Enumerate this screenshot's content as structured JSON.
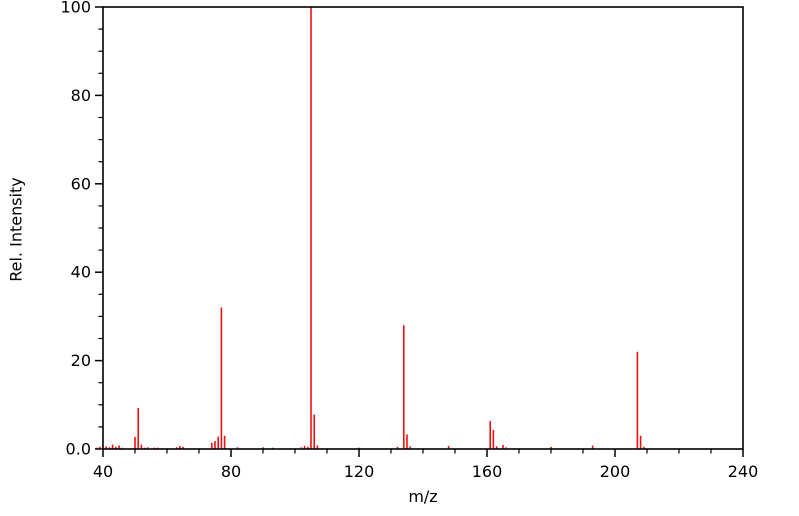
{
  "chart_data": {
    "type": "bar",
    "chart_kind": "mass-spectrum-stick-plot",
    "title": "",
    "xlabel": "m/z",
    "ylabel": "Rel. Intensity",
    "xlim": [
      40,
      240
    ],
    "ylim": [
      0,
      100
    ],
    "x_major_ticks": [
      40,
      80,
      120,
      160,
      200,
      240
    ],
    "x_tick_labels": [
      "40",
      "80",
      "120",
      "160",
      "200",
      "240"
    ],
    "x_minor_tick_step": 10,
    "y_major_ticks": [
      0,
      20,
      40,
      60,
      80,
      100
    ],
    "y_tick_labels": [
      "0.0",
      "20",
      "40",
      "60",
      "80",
      "100"
    ],
    "y_minor_tick_step": 5,
    "grid": false,
    "legend": null,
    "colors": {
      "peak": "#ee1111",
      "axis": "#000000",
      "background": "#ffffff",
      "text": "#000000"
    },
    "peaks": [
      {
        "mz": 38,
        "intensity": 0.3
      },
      {
        "mz": 39,
        "intensity": 0.5
      },
      {
        "mz": 40,
        "intensity": 0.3
      },
      {
        "mz": 41,
        "intensity": 0.6
      },
      {
        "mz": 42,
        "intensity": 0.4
      },
      {
        "mz": 43,
        "intensity": 1.0
      },
      {
        "mz": 44,
        "intensity": 0.5
      },
      {
        "mz": 45,
        "intensity": 0.8
      },
      {
        "mz": 46,
        "intensity": 0.3
      },
      {
        "mz": 50,
        "intensity": 2.7
      },
      {
        "mz": 51,
        "intensity": 9.3
      },
      {
        "mz": 52,
        "intensity": 1.0
      },
      {
        "mz": 53,
        "intensity": 0.3
      },
      {
        "mz": 54,
        "intensity": 0.4
      },
      {
        "mz": 56,
        "intensity": 0.3
      },
      {
        "mz": 57,
        "intensity": 0.3
      },
      {
        "mz": 63,
        "intensity": 0.4
      },
      {
        "mz": 64,
        "intensity": 0.7
      },
      {
        "mz": 65,
        "intensity": 0.5
      },
      {
        "mz": 74,
        "intensity": 1.4
      },
      {
        "mz": 75,
        "intensity": 1.8
      },
      {
        "mz": 76,
        "intensity": 2.8
      },
      {
        "mz": 77,
        "intensity": 32.0
      },
      {
        "mz": 78,
        "intensity": 3.0
      },
      {
        "mz": 82,
        "intensity": 0.4
      },
      {
        "mz": 90,
        "intensity": 0.4
      },
      {
        "mz": 93,
        "intensity": 0.3
      },
      {
        "mz": 102,
        "intensity": 0.4
      },
      {
        "mz": 103,
        "intensity": 0.7
      },
      {
        "mz": 104,
        "intensity": 0.5
      },
      {
        "mz": 105,
        "intensity": 100.0
      },
      {
        "mz": 106,
        "intensity": 7.8
      },
      {
        "mz": 107,
        "intensity": 0.8
      },
      {
        "mz": 120,
        "intensity": 0.3
      },
      {
        "mz": 132,
        "intensity": 0.5
      },
      {
        "mz": 134,
        "intensity": 28.0
      },
      {
        "mz": 135,
        "intensity": 3.3
      },
      {
        "mz": 136,
        "intensity": 0.6
      },
      {
        "mz": 148,
        "intensity": 0.7
      },
      {
        "mz": 161,
        "intensity": 6.3
      },
      {
        "mz": 162,
        "intensity": 4.3
      },
      {
        "mz": 163,
        "intensity": 0.6
      },
      {
        "mz": 165,
        "intensity": 0.9
      },
      {
        "mz": 166,
        "intensity": 0.4
      },
      {
        "mz": 180,
        "intensity": 0.5
      },
      {
        "mz": 193,
        "intensity": 0.8
      },
      {
        "mz": 207,
        "intensity": 22.0
      },
      {
        "mz": 208,
        "intensity": 3.0
      },
      {
        "mz": 209,
        "intensity": 0.5
      }
    ]
  }
}
